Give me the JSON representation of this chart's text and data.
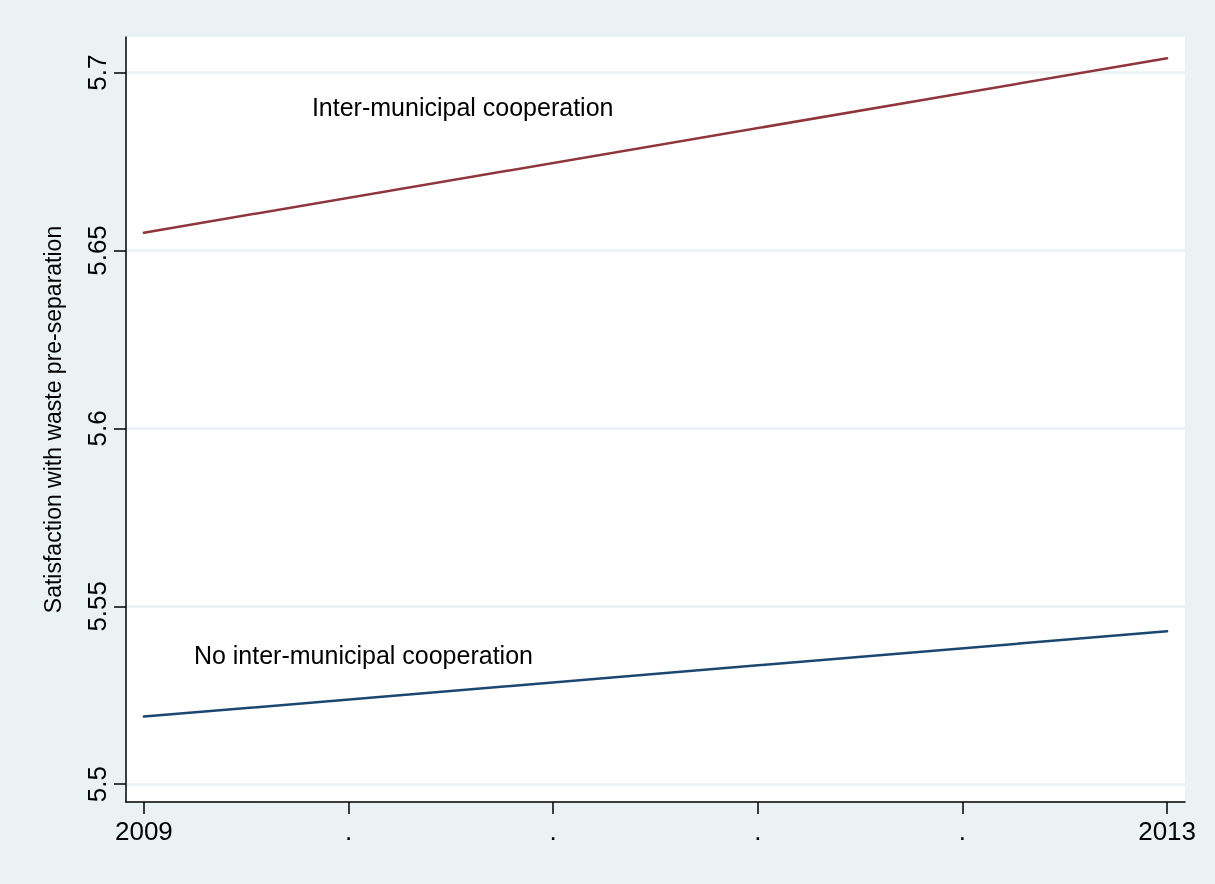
{
  "chart_data": {
    "type": "line",
    "ylabel": "Satisfaction with waste pre-separation",
    "x": [
      2009,
      2013
    ],
    "xlim": [
      2008.93,
      2013.07
    ],
    "xticks": [
      2009,
      {
        "value": 2009.8,
        "label": "."
      },
      {
        "value": 2010.6,
        "label": "."
      },
      {
        "value": 2011.4,
        "label": "."
      },
      {
        "value": 2012.2,
        "label": "."
      },
      2013
    ],
    "ylim": [
      5.495,
      5.71
    ],
    "yticks": [
      5.5,
      5.55,
      5.6,
      5.65,
      5.7
    ],
    "series": [
      {
        "name": "Inter-municipal cooperation",
        "color": "#90353b",
        "values": [
          5.655,
          5.704
        ]
      },
      {
        "name": "No inter-municipal cooperation",
        "color": "#1a476f",
        "values": [
          5.519,
          5.543
        ]
      }
    ],
    "grid": "y",
    "legend": false,
    "marker": "none",
    "line_style": "solid"
  }
}
